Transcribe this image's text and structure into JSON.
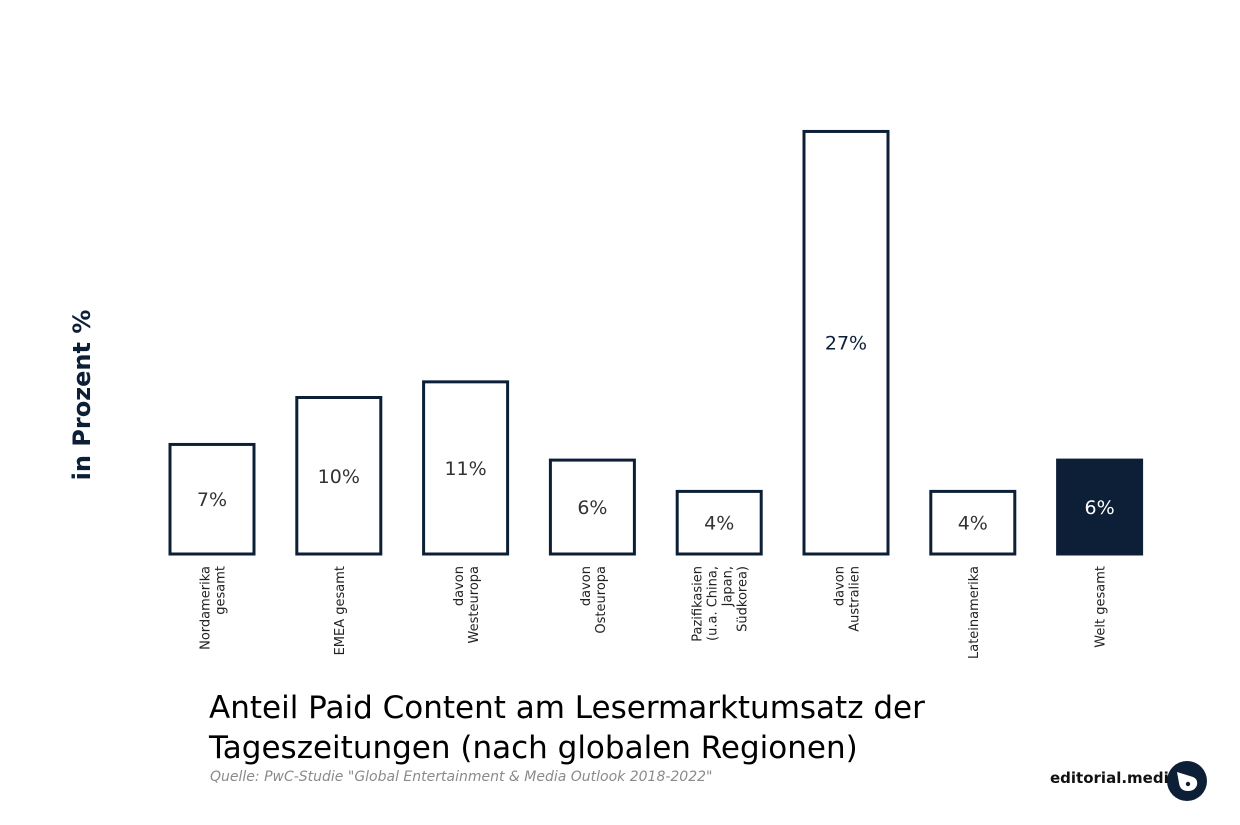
{
  "chart_data": {
    "type": "bar",
    "categories": [
      [
        "Nordamerika",
        "gesamt"
      ],
      [
        "EMEA gesamt"
      ],
      [
        "davon",
        "Westeuropa"
      ],
      [
        "davon",
        "Osteuropa"
      ],
      [
        "Pazifikasien",
        "(u.a. China,",
        "Japan,",
        "Südkorea)"
      ],
      [
        "davon",
        "Australien"
      ],
      [
        "Lateinamerika"
      ],
      [
        "Welt gesamt"
      ]
    ],
    "values": [
      7,
      10,
      11,
      6,
      4,
      27,
      4,
      6
    ],
    "value_labels": [
      "7%",
      "10%",
      "11%",
      "6%",
      "4%",
      "27%",
      "4%",
      "6%"
    ],
    "highlight_index": 7,
    "ylabel": "in Prozent %",
    "title": "Anteil Paid Content am Lesermarktumsatz der Tageszeitungen (nach globalen Regionen)",
    "title_lines": [
      "Anteil Paid Content am Lesermarktumsatz der",
      "Tageszeitungen (nach globalen Regionen)"
    ],
    "grid": false,
    "legend": "none",
    "colors": {
      "bar_outline": "#0d1f36",
      "bar_fill": "#ffffff",
      "highlight_fill": "#0d1f36",
      "highlight_text": "#ffffff"
    }
  },
  "source": "Quelle: PwC-Studie \"Global Entertainment & Media Outlook 2018-2022\"",
  "brand": {
    "name": "editorial.media",
    "logo_icon": "editorial-media-logo-icon"
  }
}
